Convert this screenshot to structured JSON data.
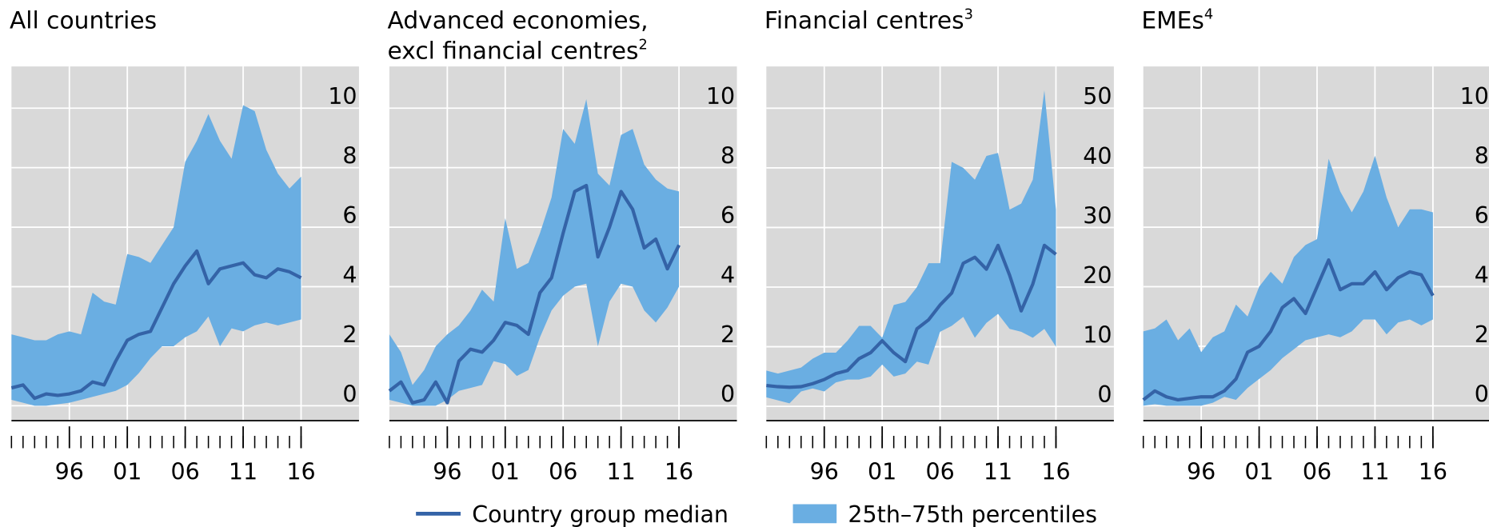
{
  "legend": [
    {
      "name": "Country group median",
      "color": "#3463a7"
    },
    {
      "name": "25th–75th percentiles",
      "color": "#6aaee2"
    }
  ],
  "chart_data": [
    {
      "type": "band_line",
      "title": [
        "All countries"
      ],
      "x": [
        1991,
        1992,
        1993,
        1994,
        1995,
        1996,
        1997,
        1998,
        1999,
        2000,
        2001,
        2002,
        2003,
        2004,
        2005,
        2006,
        2007,
        2008,
        2009,
        2010,
        2011,
        2012,
        2013,
        2014,
        2015,
        2016
      ],
      "median": [
        0.6,
        0.7,
        0.25,
        0.4,
        0.35,
        0.4,
        0.5,
        0.8,
        0.7,
        1.5,
        2.2,
        2.4,
        2.5,
        3.3,
        4.1,
        4.7,
        5.2,
        4.1,
        4.6,
        4.7,
        4.8,
        4.4,
        4.3,
        4.6,
        4.5,
        4.3
      ],
      "p75": [
        2.4,
        2.3,
        2.2,
        2.2,
        2.4,
        2.5,
        2.4,
        3.8,
        3.5,
        3.4,
        5.1,
        5.0,
        4.8,
        5.4,
        6.0,
        8.2,
        8.9,
        9.8,
        8.9,
        8.3,
        10.1,
        9.9,
        8.6,
        7.8,
        7.3,
        7.7
      ],
      "p25": [
        0.2,
        0.1,
        0.0,
        0.0,
        0.05,
        0.1,
        0.2,
        0.3,
        0.4,
        0.5,
        0.7,
        1.1,
        1.6,
        2.0,
        2.0,
        2.3,
        2.5,
        3.0,
        2.0,
        2.6,
        2.5,
        2.7,
        2.8,
        2.7,
        2.8,
        2.9
      ],
      "xlim": [
        1991,
        2021
      ],
      "ylim": [
        -0.5,
        11.4
      ],
      "yticks": [
        0,
        2,
        4,
        6,
        8,
        10
      ],
      "xticks": [
        {
          "value": 1996,
          "label": "96"
        },
        {
          "value": 2001,
          "label": "01"
        },
        {
          "value": 2006,
          "label": "06"
        },
        {
          "value": 2011,
          "label": "11"
        },
        {
          "value": 2016,
          "label": "16"
        }
      ],
      "xminorticks": [
        1991,
        1992,
        1993,
        1994,
        1995,
        1996,
        1997,
        1998,
        1999,
        2000,
        2001,
        2002,
        2003,
        2004,
        2005,
        2006,
        2007,
        2008,
        2009,
        2010,
        2011,
        2012,
        2013,
        2014,
        2015,
        2016
      ],
      "grid": true
    },
    {
      "type": "band_line",
      "title": [
        "Advanced economies,",
        "excl financial centres"
      ],
      "title_note": "2",
      "x": [
        1991,
        1992,
        1993,
        1994,
        1995,
        1996,
        1997,
        1998,
        1999,
        2000,
        2001,
        2002,
        2003,
        2004,
        2005,
        2006,
        2007,
        2008,
        2009,
        2010,
        2011,
        2012,
        2013,
        2014,
        2015,
        2016
      ],
      "median": [
        0.5,
        0.8,
        0.1,
        0.2,
        0.8,
        0.1,
        1.5,
        1.9,
        1.8,
        2.2,
        2.8,
        2.7,
        2.4,
        3.8,
        4.3,
        5.8,
        7.2,
        7.4,
        5.0,
        6.0,
        7.2,
        6.6,
        5.3,
        5.6,
        4.6,
        5.4
      ],
      "p75": [
        2.4,
        1.8,
        0.7,
        1.2,
        2.0,
        2.4,
        2.7,
        3.2,
        3.9,
        3.5,
        6.3,
        4.6,
        4.8,
        5.8,
        7.0,
        9.3,
        8.8,
        10.3,
        7.8,
        7.4,
        9.1,
        9.3,
        8.1,
        7.6,
        7.3,
        7.2
      ],
      "p25": [
        0.2,
        0.1,
        0.0,
        0.0,
        0.0,
        0.2,
        0.5,
        0.6,
        0.7,
        1.5,
        1.4,
        1.0,
        1.2,
        2.3,
        3.2,
        3.7,
        4.0,
        4.1,
        2.0,
        3.5,
        4.1,
        4.0,
        3.2,
        2.8,
        3.3,
        4.0
      ],
      "xlim": [
        1991,
        2021
      ],
      "ylim": [
        -0.5,
        11.4
      ],
      "yticks": [
        0,
        2,
        4,
        6,
        8,
        10
      ],
      "xticks": [
        {
          "value": 1996,
          "label": "96"
        },
        {
          "value": 2001,
          "label": "01"
        },
        {
          "value": 2006,
          "label": "06"
        },
        {
          "value": 2011,
          "label": "11"
        },
        {
          "value": 2016,
          "label": "16"
        }
      ],
      "xminorticks": [
        1991,
        1992,
        1993,
        1994,
        1995,
        1996,
        1997,
        1998,
        1999,
        2000,
        2001,
        2002,
        2003,
        2004,
        2005,
        2006,
        2007,
        2008,
        2009,
        2010,
        2011,
        2012,
        2013,
        2014,
        2015,
        2016
      ],
      "grid": true
    },
    {
      "type": "band_line",
      "title": [
        "Financial centres"
      ],
      "title_note": "3",
      "x": [
        1991,
        1992,
        1993,
        1994,
        1995,
        1996,
        1997,
        1998,
        1999,
        2000,
        2001,
        2002,
        2003,
        2004,
        2005,
        2006,
        2007,
        2008,
        2009,
        2010,
        2011,
        2012,
        2013,
        2014,
        2015,
        2016
      ],
      "median": [
        3.5,
        3.3,
        3.2,
        3.3,
        3.8,
        4.5,
        5.5,
        6.0,
        8.0,
        9.0,
        11.0,
        9.0,
        7.5,
        13.0,
        14.5,
        17.0,
        19.0,
        24.0,
        25.0,
        23.0,
        27.0,
        22.0,
        16.0,
        20.5,
        27.0,
        25.5
      ],
      "p75": [
        6.0,
        5.5,
        6.0,
        6.5,
        8.0,
        9.0,
        9.0,
        11.0,
        13.5,
        13.5,
        11.5,
        17.0,
        17.5,
        20.0,
        24.0,
        24.0,
        41.0,
        40.0,
        38.0,
        42.0,
        42.5,
        33.0,
        34.0,
        38.0,
        53.0,
        33.0
      ],
      "p25": [
        1.5,
        1.0,
        0.5,
        2.5,
        3.0,
        2.5,
        4.0,
        4.5,
        4.5,
        5.0,
        7.0,
        5.0,
        5.5,
        7.5,
        7.0,
        12.5,
        13.5,
        15.0,
        11.5,
        14.0,
        15.5,
        13.0,
        12.5,
        11.5,
        13.0,
        10.0
      ],
      "xlim": [
        1991,
        2021
      ],
      "ylim": [
        -2.4,
        57
      ],
      "yticks": [
        0,
        10,
        20,
        30,
        40,
        50
      ],
      "xticks": [
        {
          "value": 1996,
          "label": "96"
        },
        {
          "value": 2001,
          "label": "01"
        },
        {
          "value": 2006,
          "label": "06"
        },
        {
          "value": 2011,
          "label": "11"
        },
        {
          "value": 2016,
          "label": "16"
        }
      ],
      "xminorticks": [
        1991,
        1992,
        1993,
        1994,
        1995,
        1996,
        1997,
        1998,
        1999,
        2000,
        2001,
        2002,
        2003,
        2004,
        2005,
        2006,
        2007,
        2008,
        2009,
        2010,
        2011,
        2012,
        2013,
        2014,
        2015,
        2016
      ],
      "grid": true
    },
    {
      "type": "band_line",
      "title": [
        "EMEs"
      ],
      "title_note": "4",
      "x": [
        1991,
        1992,
        1993,
        1994,
        1995,
        1996,
        1997,
        1998,
        1999,
        2000,
        2001,
        2002,
        2003,
        2004,
        2005,
        2006,
        2007,
        2008,
        2009,
        2010,
        2011,
        2012,
        2013,
        2014,
        2015,
        2016
      ],
      "median": [
        0.2,
        0.5,
        0.3,
        0.2,
        0.25,
        0.3,
        0.3,
        0.5,
        0.9,
        1.8,
        2.0,
        2.5,
        3.3,
        3.6,
        3.1,
        4.0,
        4.9,
        3.9,
        4.1,
        4.1,
        4.5,
        3.9,
        4.3,
        4.5,
        4.4,
        3.7
      ],
      "p75": [
        2.5,
        2.6,
        2.9,
        2.2,
        2.6,
        1.8,
        2.3,
        2.5,
        3.4,
        3.0,
        4.0,
        4.5,
        4.1,
        5.0,
        5.4,
        5.6,
        8.3,
        7.2,
        6.5,
        7.2,
        8.4,
        7.0,
        6.0,
        6.6,
        6.6,
        6.5
      ],
      "p25": [
        0.0,
        0.05,
        0.0,
        0.0,
        0.0,
        0.0,
        0.1,
        0.3,
        0.2,
        0.6,
        0.9,
        1.2,
        1.6,
        1.9,
        2.2,
        2.3,
        2.4,
        2.3,
        2.5,
        2.9,
        2.9,
        2.4,
        2.8,
        2.9,
        2.7,
        2.9
      ],
      "xlim": [
        1991,
        2021
      ],
      "ylim": [
        -0.5,
        11.4
      ],
      "yticks": [
        0,
        2,
        4,
        6,
        8,
        10
      ],
      "xticks": [
        {
          "value": 1996,
          "label": "96"
        },
        {
          "value": 2001,
          "label": "01"
        },
        {
          "value": 2006,
          "label": "06"
        },
        {
          "value": 2011,
          "label": "11"
        },
        {
          "value": 2016,
          "label": "16"
        }
      ],
      "xminorticks": [
        1991,
        1992,
        1993,
        1994,
        1995,
        1996,
        1997,
        1998,
        1999,
        2000,
        2001,
        2002,
        2003,
        2004,
        2005,
        2006,
        2007,
        2008,
        2009,
        2010,
        2011,
        2012,
        2013,
        2014,
        2015,
        2016
      ],
      "grid": true
    }
  ]
}
